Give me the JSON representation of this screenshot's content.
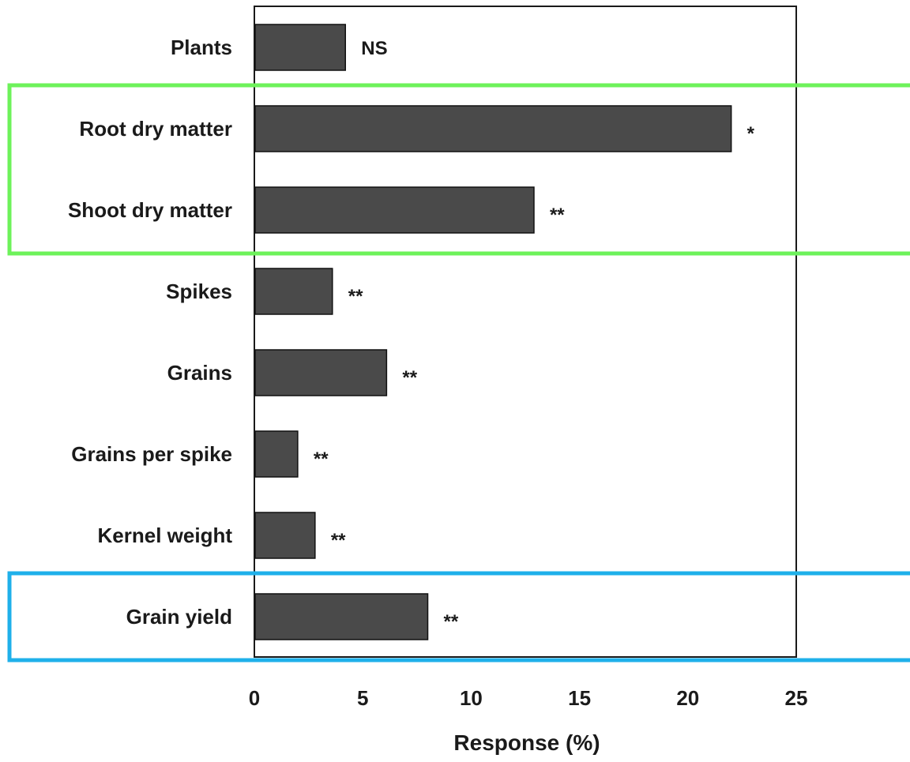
{
  "chart_data": {
    "type": "bar",
    "orientation": "horizontal",
    "title": "",
    "xlabel": "Response (%)",
    "ylabel": "",
    "xlim": [
      0,
      25
    ],
    "xticks": [
      0,
      5,
      10,
      15,
      20,
      25
    ],
    "grid": false,
    "legend": "none",
    "categories": [
      "Plants",
      "Root dry matter",
      "Shoot dry matter",
      "Spikes",
      "Grains",
      "Grains per spike",
      "Kernel weight",
      "Grain yield"
    ],
    "values": [
      4.2,
      22.0,
      12.9,
      3.6,
      6.1,
      2.0,
      2.8,
      8.0
    ],
    "significance": [
      "NS",
      "*",
      "**",
      "**",
      "**",
      "**",
      "**",
      "**"
    ],
    "bar_color": "#4a4a4a",
    "highlights": [
      {
        "categories": [
          "Root dry matter",
          "Shoot dry matter"
        ],
        "color": "#6df25a"
      },
      {
        "categories": [
          "Grain yield"
        ],
        "color": "#1fb0ea"
      }
    ]
  }
}
